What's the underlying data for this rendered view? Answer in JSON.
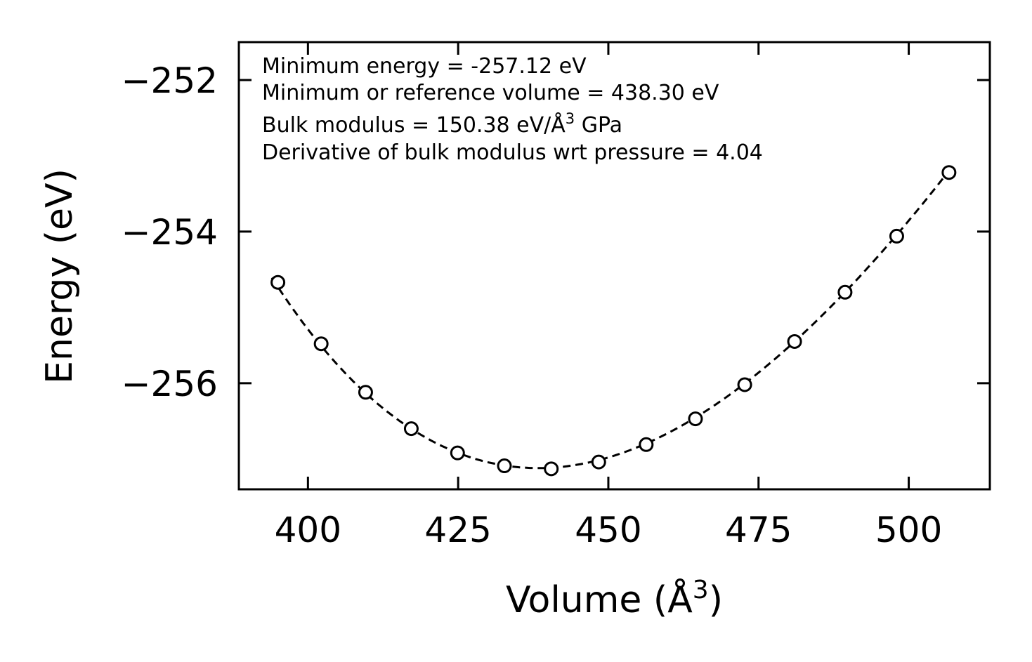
{
  "chart_data": {
    "type": "scatter",
    "xlabel_main": "Volume (Å",
    "xlabel_sup": "3",
    "xlabel_tail": ")",
    "ylabel": "Energy (eV)",
    "xlim": [
      388.5,
      513.5
    ],
    "ylim": [
      -257.4,
      -251.5
    ],
    "xticks": [
      400,
      425,
      450,
      475,
      500
    ],
    "xtick_labels": [
      "400",
      "425",
      "450",
      "475",
      "500"
    ],
    "yticks": [
      -256,
      -254,
      -252
    ],
    "ytick_labels": [
      "−256",
      "−254",
      "−252"
    ],
    "series": [
      {
        "name": "data points",
        "style": "open-circle",
        "x": [
          395.0,
          402.2,
          409.6,
          417.2,
          424.9,
          432.7,
          440.5,
          448.4,
          456.3,
          464.5,
          472.7,
          481.0,
          489.4,
          498.0,
          506.7
        ],
        "y": [
          -254.67,
          -255.48,
          -256.12,
          -256.6,
          -256.92,
          -257.09,
          -257.13,
          -257.04,
          -256.81,
          -256.47,
          -256.02,
          -255.45,
          -254.8,
          -254.06,
          -253.22
        ]
      },
      {
        "name": "fit",
        "style": "dashed-line",
        "x_start": 394.0,
        "x_end": 507.0
      }
    ],
    "fit_params": {
      "E0": -257.12,
      "V0": 438.3,
      "B0": 150.38,
      "B0p": 4.04
    },
    "annotations": {
      "min_energy": "Minimum energy = -257.12 eV",
      "min_volume": "Minimum or reference volume = 438.30 eV",
      "bulk_prefix": "Bulk modulus = 150.38 eV/Å",
      "bulk_sup": "3",
      "bulk_suffix": " GPa",
      "derivative": "Derivative of bulk modulus wrt pressure = 4.04"
    },
    "colors": {
      "line": "#000000",
      "background": "#ffffff"
    }
  }
}
